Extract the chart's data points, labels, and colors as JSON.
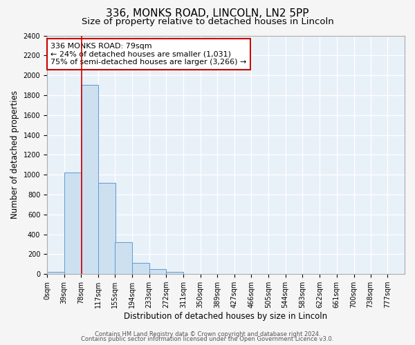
{
  "title": "336, MONKS ROAD, LINCOLN, LN2 5PP",
  "subtitle": "Size of property relative to detached houses in Lincoln",
  "xlabel": "Distribution of detached houses by size in Lincoln",
  "ylabel": "Number of detached properties",
  "bar_color": "#cde0f0",
  "bar_edge_color": "#5b9bd5",
  "background_color": "#e8f0f8",
  "grid_color": "#ffffff",
  "ylim": [
    0,
    2400
  ],
  "yticks": [
    0,
    200,
    400,
    600,
    800,
    1000,
    1200,
    1400,
    1600,
    1800,
    2000,
    2200,
    2400
  ],
  "bin_edges": [
    0,
    39,
    78,
    117,
    155,
    194,
    233,
    272,
    311,
    350,
    389,
    427,
    466,
    505,
    544,
    583,
    622,
    661,
    700,
    738,
    777
  ],
  "bin_labels": [
    "0sqm",
    "39sqm",
    "78sqm",
    "117sqm",
    "155sqm",
    "194sqm",
    "233sqm",
    "272sqm",
    "311sqm",
    "350sqm",
    "389sqm",
    "427sqm",
    "466sqm",
    "505sqm",
    "544sqm",
    "583sqm",
    "622sqm",
    "661sqm",
    "700sqm",
    "738sqm",
    "777sqm"
  ],
  "bar_heights": [
    20,
    1025,
    1905,
    920,
    320,
    110,
    50,
    20,
    0,
    0,
    0,
    0,
    0,
    0,
    0,
    0,
    0,
    0,
    0,
    0
  ],
  "property_value": 79,
  "property_line_color": "#cc0000",
  "annotation_line1": "336 MONKS ROAD: 79sqm",
  "annotation_line2": "← 24% of detached houses are smaller (1,031)",
  "annotation_line3": "75% of semi-detached houses are larger (3,266) →",
  "annotation_box_color": "#ffffff",
  "annotation_box_edge": "#cc0000",
  "footer_line1": "Contains HM Land Registry data © Crown copyright and database right 2024.",
  "footer_line2": "Contains public sector information licensed under the Open Government Licence v3.0.",
  "title_fontsize": 11,
  "subtitle_fontsize": 9.5,
  "axis_label_fontsize": 8.5,
  "tick_fontsize": 7,
  "annotation_fontsize": 8,
  "footer_fontsize": 6
}
